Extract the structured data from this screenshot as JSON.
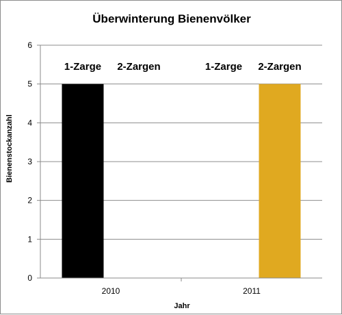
{
  "chart_data": {
    "type": "bar",
    "title": "Überwinterung  Bienenvölker",
    "xlabel": "Jahr",
    "ylabel": "Bienenstockanzahl",
    "categories": [
      "2010",
      "2011"
    ],
    "series": [
      {
        "name": "1-Zarge",
        "values": [
          5,
          0
        ],
        "color": "#000000"
      },
      {
        "name": "2-Zargen",
        "values": [
          0,
          5
        ],
        "color": "#e0a920"
      }
    ],
    "ylim": [
      0,
      6
    ],
    "yticks": [
      "0",
      "1",
      "2",
      "3",
      "4",
      "5",
      "6"
    ],
    "grid": true
  }
}
